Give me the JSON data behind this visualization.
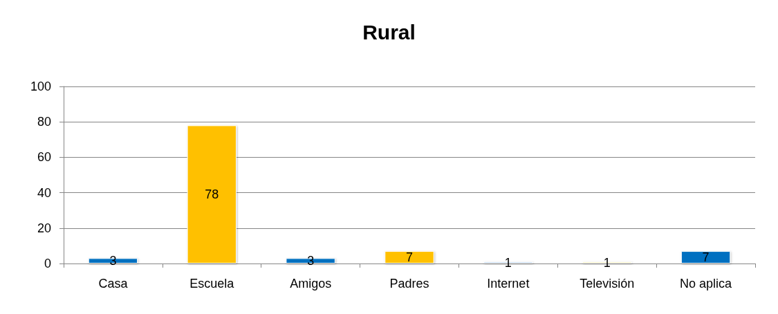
{
  "chart_data": {
    "type": "bar",
    "title": "Rural",
    "categories": [
      "Casa",
      "Escuela",
      "Amigos",
      "Padres",
      "Internet",
      "Televisión",
      "No aplica"
    ],
    "values": [
      3,
      78,
      3,
      7,
      1,
      1,
      7
    ],
    "colors": [
      "#0070c0",
      "#ffc000",
      "#0070c0",
      "#ffc000",
      "#9dc3e6",
      "#ffe699",
      "#0070c0"
    ],
    "ylim": [
      0,
      100
    ],
    "yticks": [
      0,
      20,
      40,
      60,
      80,
      100
    ],
    "grid": "y",
    "data_labels": true
  }
}
